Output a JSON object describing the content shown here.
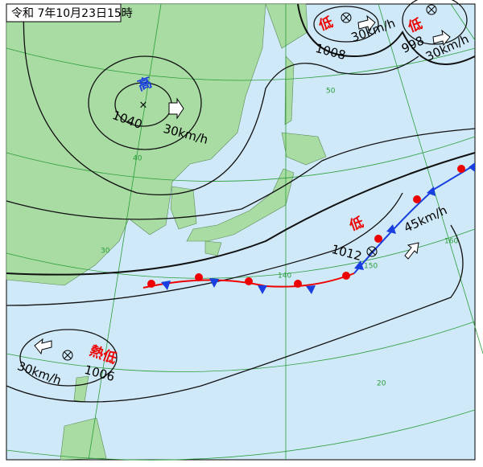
{
  "title": "令和 7年10月23日15時",
  "systems": [
    {
      "kind": "高",
      "pressure": "1040",
      "speed": "30km/h"
    },
    {
      "kind": "低",
      "pressure": "1008",
      "speed": "30km/h"
    },
    {
      "kind": "低",
      "pressure": "998",
      "speed": "30km/h"
    },
    {
      "kind": "低",
      "pressure": "1012",
      "speed": "45km/h"
    },
    {
      "kind": "熱低",
      "pressure": "1006",
      "speed": "30km/h"
    }
  ],
  "grid_labels": [
    "50",
    "40",
    "30",
    "20",
    "140",
    "150",
    "160"
  ]
}
